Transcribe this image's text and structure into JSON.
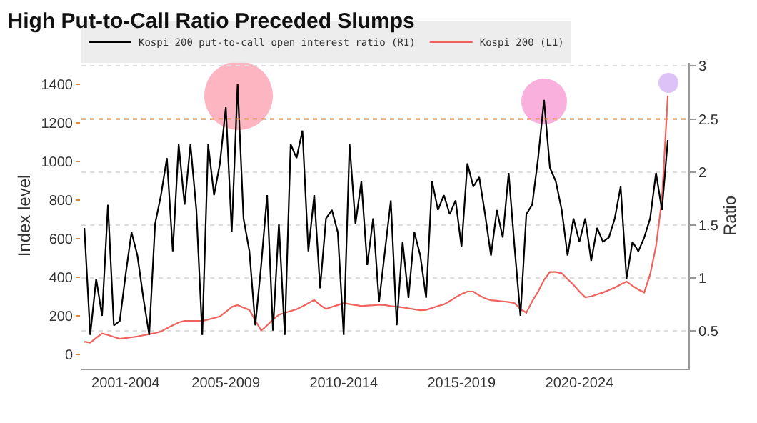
{
  "chart_data": {
    "type": "line",
    "title": "High Put-to-Call Ratio Preceded Slumps",
    "ylabel": "Index level",
    "y2label": "Ratio",
    "categories": [
      null,
      null,
      null,
      null,
      null,
      null,
      null,
      "2001-2004",
      null,
      null,
      null,
      null,
      null,
      null,
      null,
      null,
      null,
      null,
      null,
      null,
      null,
      null,
      null,
      null,
      "2005-2009",
      null,
      null,
      null,
      null,
      null,
      null,
      null,
      null,
      null,
      null,
      null,
      null,
      null,
      null,
      null,
      null,
      null,
      null,
      null,
      "2010-2014",
      null,
      null,
      null,
      null,
      null,
      null,
      null,
      null,
      null,
      null,
      null,
      null,
      null,
      null,
      null,
      null,
      null,
      null,
      null,
      "2015-2019",
      null,
      null,
      null,
      null,
      null,
      null,
      null,
      null,
      null,
      null,
      null,
      null,
      null,
      null,
      null,
      null,
      null,
      null,
      null,
      "2020-2024",
      null,
      null,
      null,
      null,
      null,
      null,
      null,
      null,
      null,
      null,
      null,
      null,
      null,
      null,
      null
    ],
    "ylim": [
      -75,
      1510
    ],
    "yticks": [
      0,
      200,
      400,
      600,
      800,
      1000,
      1200,
      1400
    ],
    "y2lim": [
      0.14,
      3.03
    ],
    "y2ticks": [
      0.5,
      1.0,
      1.5,
      2.0,
      2.5,
      3.0
    ],
    "grid": "y",
    "legend": "top left",
    "line_style": "solid",
    "ref_lines": [
      {
        "axis": "y2",
        "value": 2.5,
        "color": "#e08a3c",
        "line_style": "dotted"
      }
    ],
    "series": [
      {
        "name": "Kospi 200 put-to-call open interest ratio (R1)",
        "color": "#000000",
        "axis": "y2",
        "values": [
          1.47,
          0.46,
          0.99,
          0.64,
          1.69,
          0.55,
          0.59,
          1.03,
          1.43,
          1.21,
          0.81,
          0.46,
          1.51,
          1.78,
          2.13,
          1.25,
          2.26,
          1.69,
          2.26,
          1.64,
          0.46,
          2.26,
          1.78,
          2.08,
          2.61,
          1.43,
          2.83,
          1.56,
          1.25,
          0.55,
          1.12,
          1.78,
          0.5,
          1.51,
          0.46,
          2.26,
          2.13,
          2.39,
          1.25,
          1.78,
          0.9,
          1.56,
          1.64,
          1.43,
          0.46,
          2.26,
          1.51,
          1.91,
          1.12,
          1.56,
          0.77,
          1.25,
          1.73,
          0.55,
          1.34,
          0.81,
          1.43,
          1.21,
          0.81,
          1.91,
          1.64,
          1.78,
          1.6,
          1.73,
          1.29,
          2.08,
          1.86,
          1.95,
          1.6,
          1.21,
          1.64,
          1.38,
          1.99,
          1.29,
          0.64,
          1.6,
          1.69,
          2.13,
          2.68,
          2.04,
          1.91,
          1.64,
          1.21,
          1.56,
          1.34,
          1.56,
          1.16,
          1.47,
          1.34,
          1.38,
          1.56,
          1.86,
          0.99,
          1.34,
          1.25,
          1.38,
          1.56,
          1.99,
          1.64,
          2.3
        ]
      },
      {
        "name": "Kospi 200 (L1)",
        "color": "#f0625e",
        "values": [
          65,
          60,
          85,
          108,
          100,
          90,
          80,
          84,
          88,
          92,
          98,
          104,
          110,
          118,
          135,
          150,
          165,
          173,
          173,
          173,
          173,
          180,
          188,
          196,
          220,
          245,
          255,
          242,
          230,
          175,
          123,
          150,
          180,
          205,
          215,
          224,
          233,
          248,
          265,
          281,
          255,
          235,
          245,
          255,
          265,
          260,
          255,
          250,
          252,
          254,
          257,
          255,
          250,
          247,
          243,
          238,
          233,
          228,
          230,
          240,
          250,
          258,
          275,
          295,
          312,
          325,
          325,
          305,
          290,
          280,
          277,
          274,
          271,
          265,
          235,
          215,
          275,
          325,
          385,
          426,
          426,
          420,
          390,
          360,
          325,
          295,
          300,
          310,
          320,
          332,
          345,
          362,
          377,
          355,
          335,
          320,
          414,
          560,
          800,
          1340
        ]
      }
    ]
  }
}
